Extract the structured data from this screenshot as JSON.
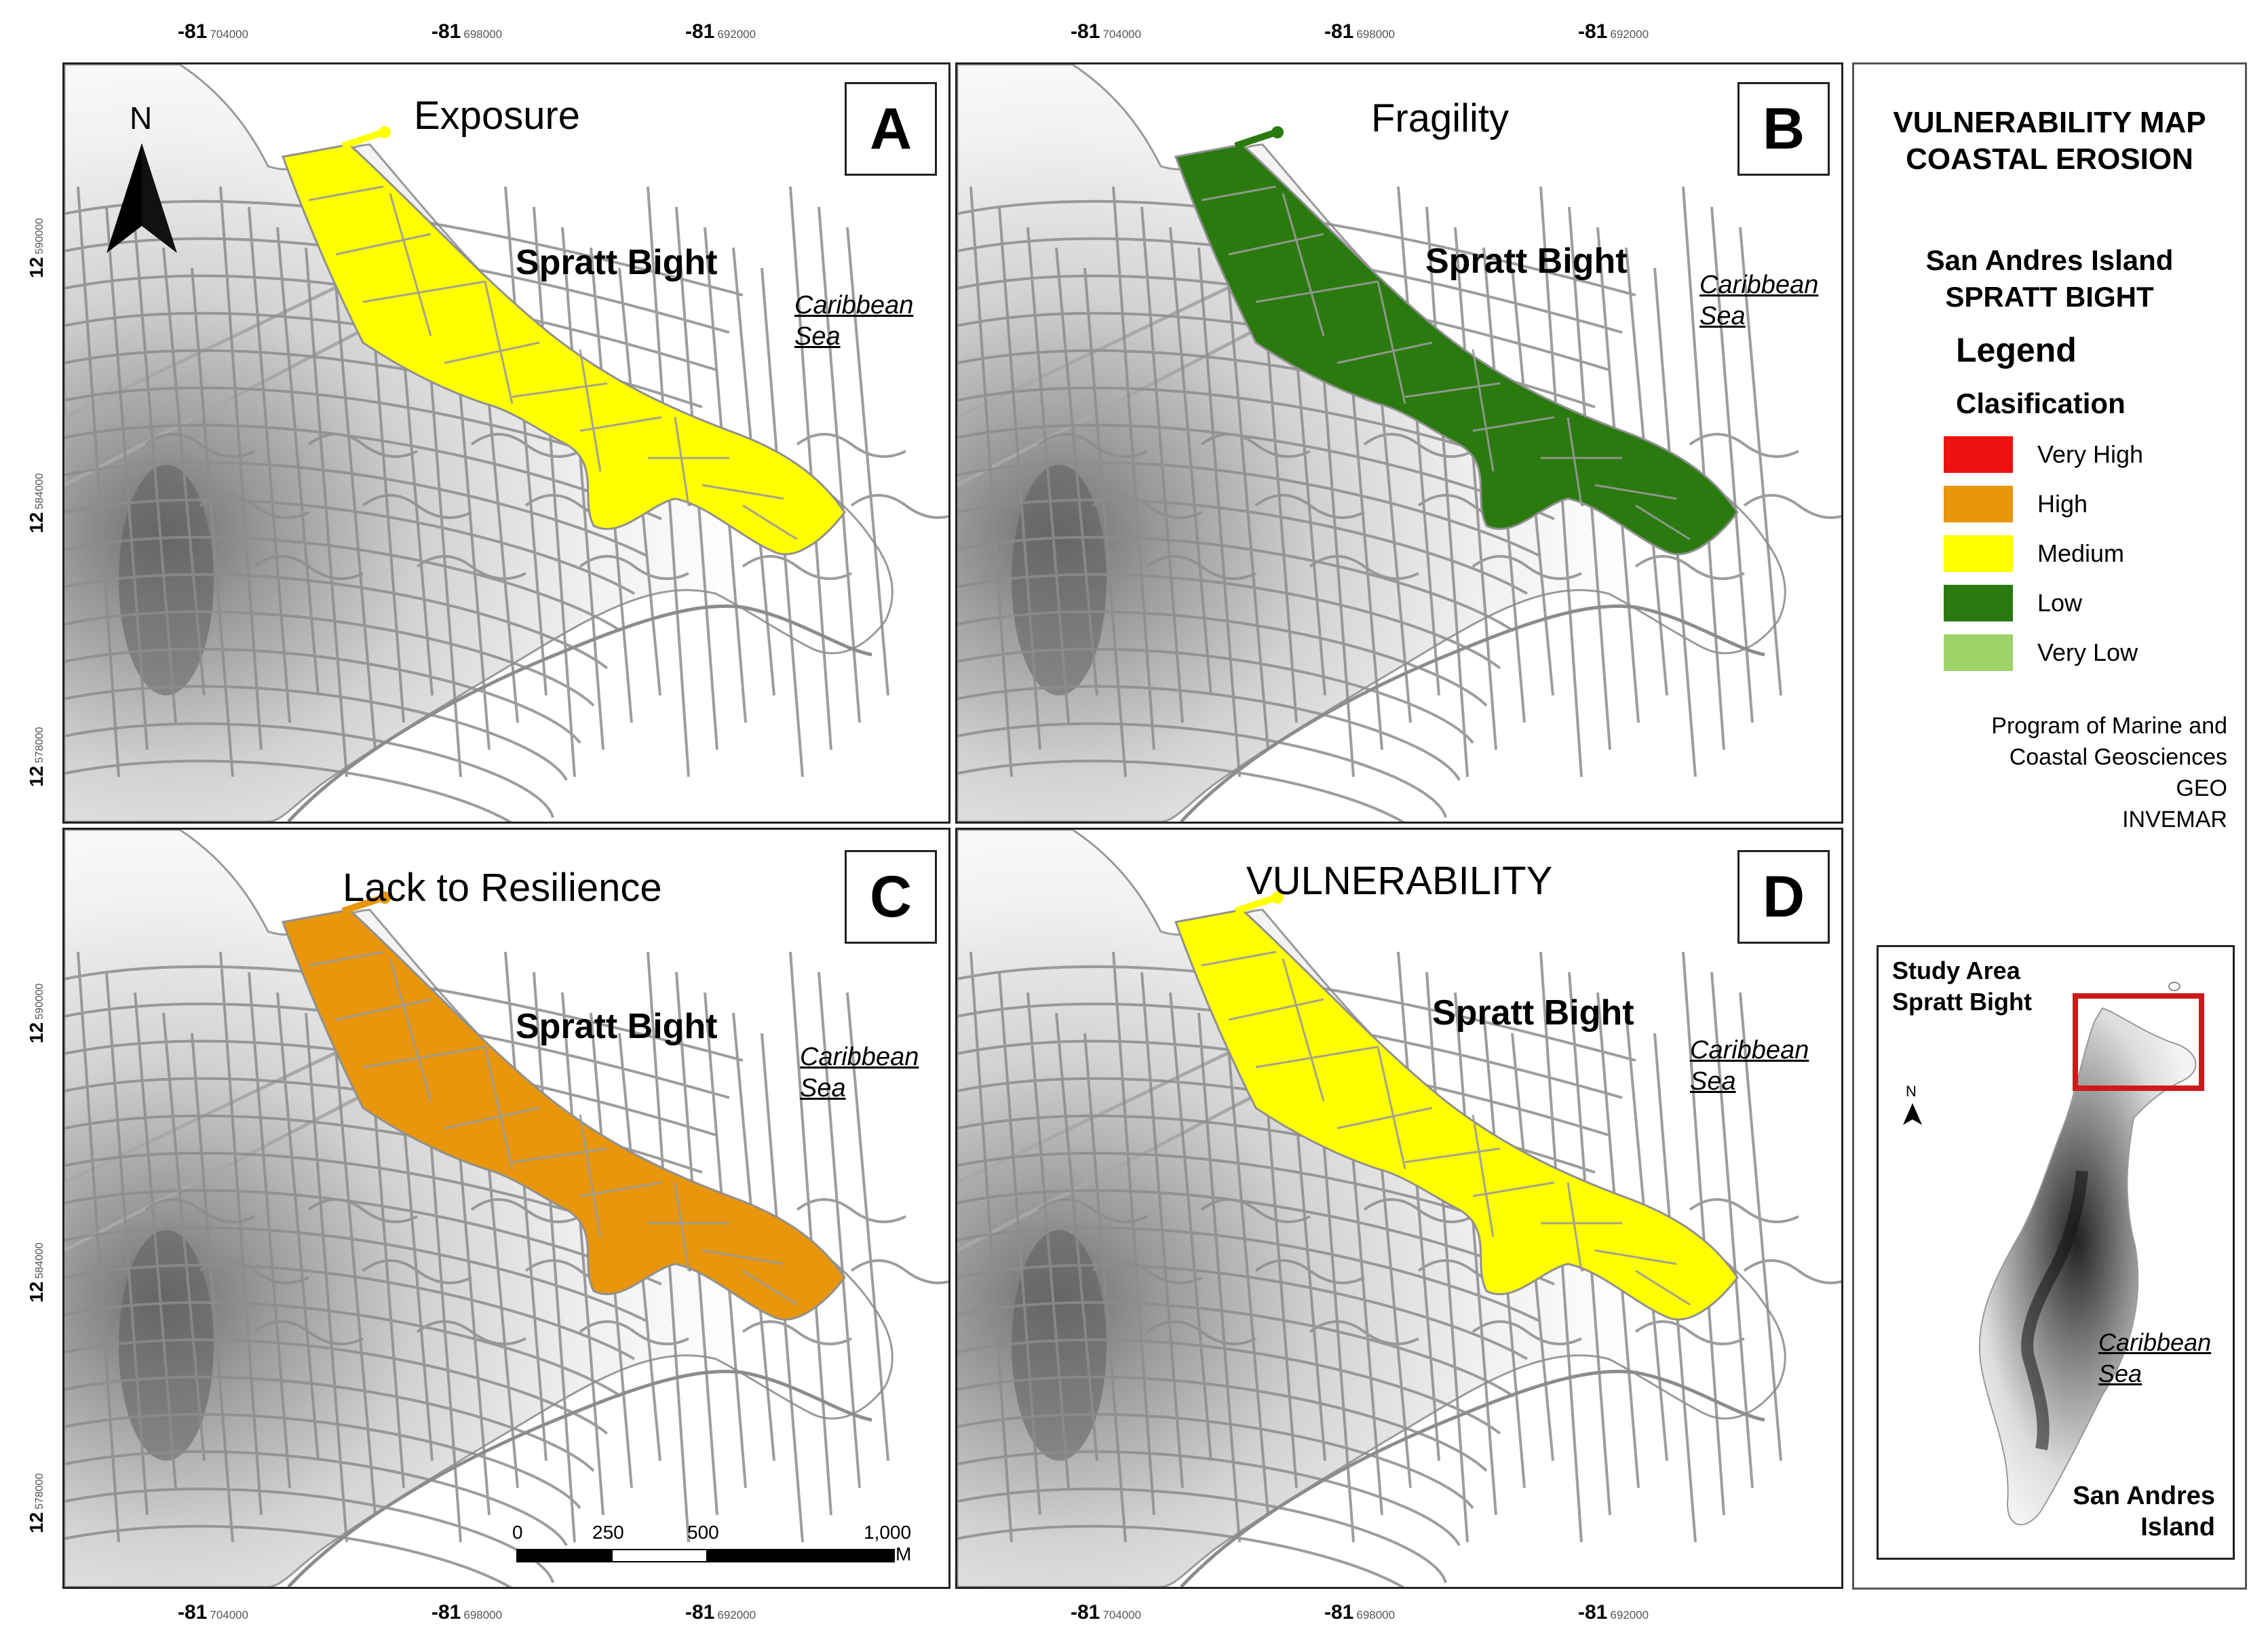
{
  "coords": {
    "top": [
      {
        "deg": "-81",
        "min": "704000"
      },
      {
        "deg": "-81",
        "min": "698000"
      },
      {
        "deg": "-81",
        "min": "692000"
      },
      {
        "deg": "-81",
        "min": "704000"
      },
      {
        "deg": "-81",
        "min": "698000"
      },
      {
        "deg": "-81",
        "min": "692000"
      }
    ],
    "bottom": [
      {
        "deg": "-81",
        "min": "704000"
      },
      {
        "deg": "-81",
        "min": "698000"
      },
      {
        "deg": "-81",
        "min": "692000"
      },
      {
        "deg": "-81",
        "min": "704000"
      },
      {
        "deg": "-81",
        "min": "698000"
      },
      {
        "deg": "-81",
        "min": "692000"
      }
    ],
    "left": [
      {
        "deg": "12",
        "min": "590000"
      },
      {
        "deg": "12",
        "min": "584000"
      },
      {
        "deg": "12",
        "min": "578000"
      },
      {
        "deg": "12",
        "min": "590000"
      },
      {
        "deg": "12",
        "min": "584000"
      },
      {
        "deg": "12",
        "min": "578000"
      }
    ]
  },
  "panels": [
    {
      "letter": "A",
      "title": "Exposure",
      "place": "Spratt Bight",
      "sea_line1": "Caribbean",
      "sea_line2": "Sea",
      "fill": "#ffff00"
    },
    {
      "letter": "B",
      "title": "Fragility",
      "place": "Spratt Bight",
      "sea_line1": "Caribbean",
      "sea_line2": "Sea",
      "fill": "#2a7a10"
    },
    {
      "letter": "C",
      "title": "Lack to Resilience",
      "place": "Spratt Bight",
      "sea_line1": "Caribbean",
      "sea_line2": "Sea",
      "fill": "#e8960c"
    },
    {
      "letter": "D",
      "title": "VULNERABILITY",
      "place": "Spratt Bight",
      "sea_line1": "Caribbean",
      "sea_line2": "Sea",
      "fill": "#ffff00"
    }
  ],
  "north_label": "N",
  "scale_bar": {
    "labels": [
      "0",
      "250",
      "500",
      "1,000"
    ],
    "unit": "M"
  },
  "legend": {
    "title_line1": "VULNERABILITY MAP",
    "title_line2": "COASTAL EROSION",
    "sub_line1": "San Andres Island",
    "sub_line2": "SPRATT BIGHT",
    "heading": "Legend",
    "class_heading": "Clasification",
    "classes": [
      {
        "label": "Very High",
        "color": "#ee1111"
      },
      {
        "label": "High",
        "color": "#e8960c"
      },
      {
        "label": "Medium",
        "color": "#ffff00"
      },
      {
        "label": "Low",
        "color": "#2a7a10"
      },
      {
        "label": "Very Low",
        "color": "#9cd46a"
      }
    ],
    "org_line1": "Program of Marine and",
    "org_line2": "Coastal Geosciences",
    "org_line3": "GEO",
    "org_line4": "INVEMAR"
  },
  "inset": {
    "title_line1": "Study Area",
    "title_line2": "Spratt Bight",
    "north_label": "N",
    "sea_line1": "Caribbean",
    "sea_line2": "Sea",
    "island_line1": "San Andres",
    "island_line2": "Island"
  }
}
